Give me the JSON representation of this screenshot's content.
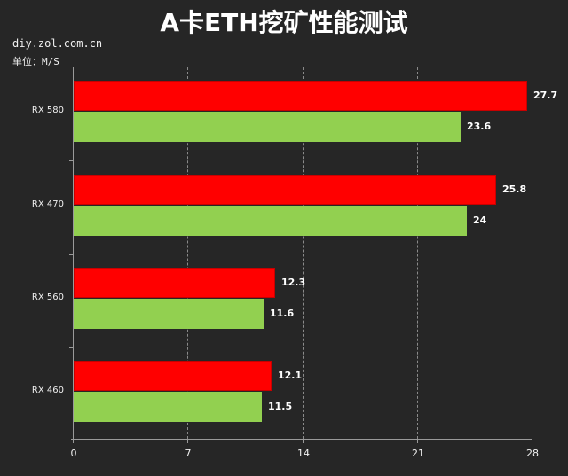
{
  "title": "A卡ETH挖矿性能测试",
  "source": "diy.zol.com.cn",
  "unit": "单位：M/S",
  "colors": {
    "background": "#262626",
    "series1": "#ff0000",
    "series2": "#92d050",
    "text": "#ffffff"
  },
  "axis": {
    "ticks": [
      "0",
      "7",
      "14",
      "21",
      "28"
    ]
  },
  "categories": [
    {
      "label": "RX 580",
      "v1": "27.7",
      "v2": "23.6"
    },
    {
      "label": "RX 470",
      "v1": "25.8",
      "v2": "24"
    },
    {
      "label": "RX 560",
      "v1": "12.3",
      "v2": "11.6"
    },
    {
      "label": "RX 460",
      "v1": "12.1",
      "v2": "11.5"
    }
  ],
  "chart_data": {
    "type": "bar",
    "orientation": "horizontal",
    "title": "A卡ETH挖矿性能测试",
    "subtitle": "diy.zol.com.cn",
    "xlabel": "",
    "ylabel": "单位：M/S",
    "categories": [
      "RX 580",
      "RX 470",
      "RX 560",
      "RX 460"
    ],
    "series": [
      {
        "name": "Series 1 (red)",
        "color": "#ff0000",
        "values": [
          27.7,
          25.8,
          12.3,
          12.1
        ]
      },
      {
        "name": "Series 2 (green)",
        "color": "#92d050",
        "values": [
          23.6,
          24,
          11.6,
          11.5
        ]
      }
    ],
    "xlim": [
      0,
      28
    ],
    "xticks": [
      0,
      7,
      14,
      21,
      28
    ],
    "grid": "vertical dashed",
    "legend": "none",
    "data_labels": true
  }
}
